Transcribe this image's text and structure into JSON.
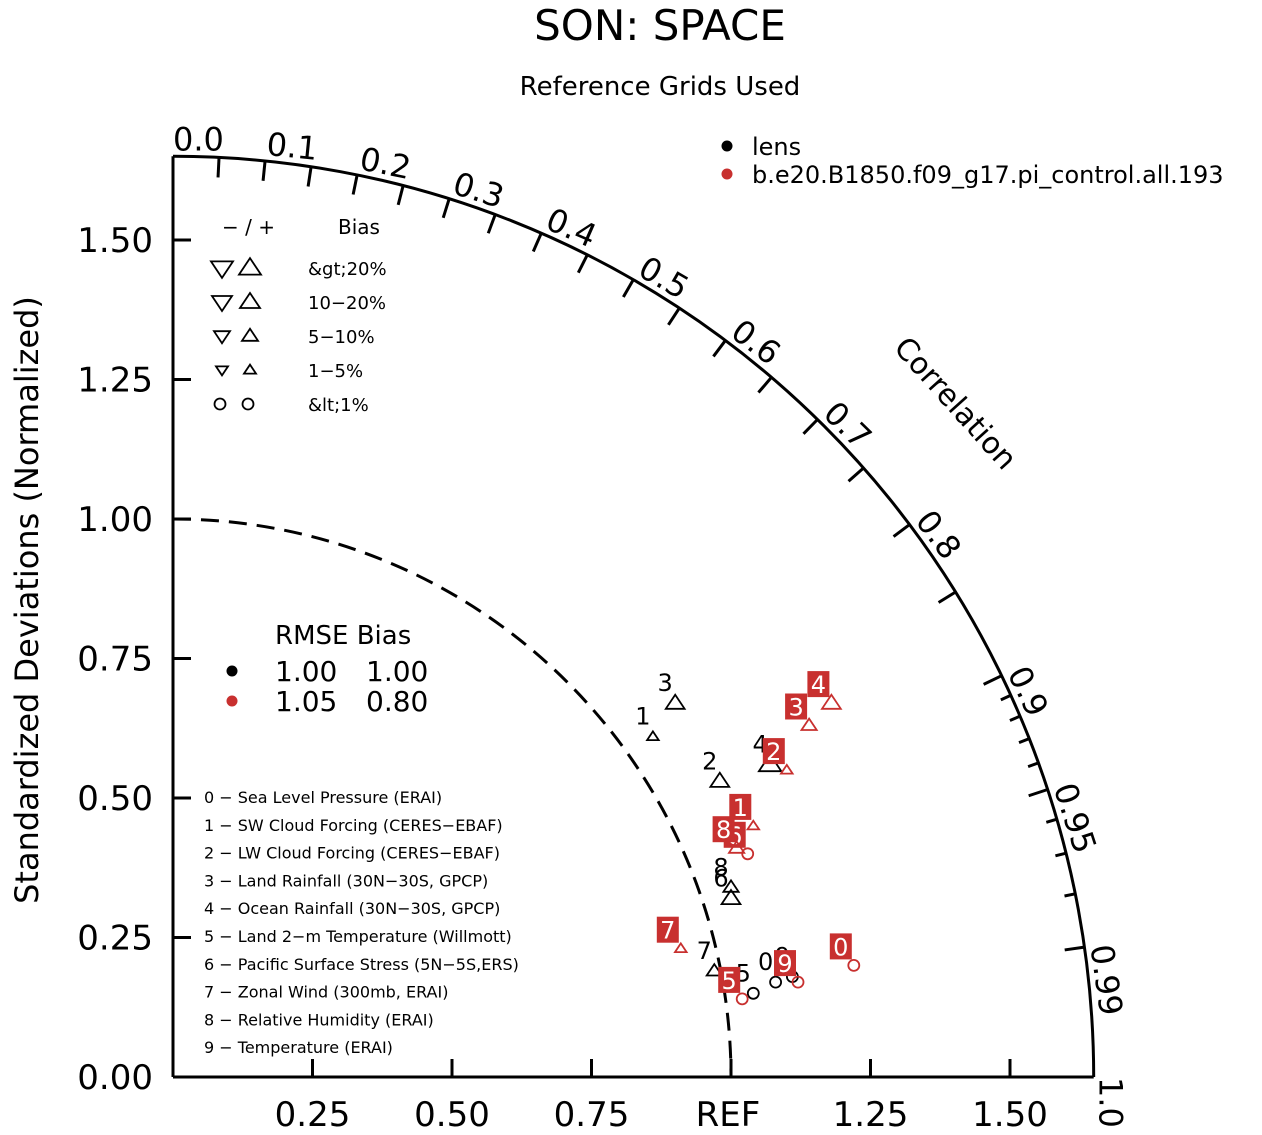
{
  "chart_data": {
    "type": "taylor_diagram",
    "title": "SON: SPACE",
    "subtitle": "Reference Grids Used",
    "ylabel": "Standardized Deviations (Normalized)",
    "correlation_label": "Correlation",
    "ref_label": "REF",
    "sd_ticks": [
      "0.00",
      "0.25",
      "0.50",
      "0.75",
      "1.00",
      "1.25",
      "1.50"
    ],
    "x_ticks": [
      "0.25",
      "0.50",
      "0.75",
      "1.25",
      "1.50"
    ],
    "max_sd": 1.65,
    "ref_circle_sd": 1.0,
    "corr_labels": [
      "0.0",
      "0.1",
      "0.2",
      "0.3",
      "0.4",
      "0.5",
      "0.6",
      "0.7",
      "0.8",
      "0.9",
      "0.95",
      "0.99",
      "1.0"
    ],
    "corr_label_values": [
      0.0,
      0.1,
      0.2,
      0.3,
      0.4,
      0.5,
      0.6,
      0.7,
      0.8,
      0.9,
      0.95,
      0.99,
      1.0
    ],
    "corr_ticks_major": [
      0.05,
      0.1,
      0.15,
      0.2,
      0.25,
      0.3,
      0.35,
      0.4,
      0.45,
      0.5,
      0.55,
      0.6,
      0.65,
      0.7,
      0.75,
      0.8,
      0.85,
      0.9,
      0.95,
      0.99
    ],
    "corr_ticks_minor": [
      0.91,
      0.92,
      0.93,
      0.94,
      0.96,
      0.97,
      0.98
    ],
    "cases": [
      {
        "name": "lens",
        "color": "#000000"
      },
      {
        "name": "b.e20.B1850.f09_g17.pi_control.all.193",
        "color": "#c8302f"
      }
    ],
    "legend_bias": {
      "header_sign": "− / +",
      "header_label": "Bias",
      "rows": [
        "&gt;20%",
        "10−20%",
        "5−10%",
        "1−5%",
        "&lt;1%"
      ]
    },
    "legend_summary": {
      "header": "RMSE Bias",
      "rows": [
        {
          "case": "lens",
          "rmse": "1.00",
          "bias": "1.00"
        },
        {
          "case": "b.e20.B1850.f09_g17.pi_control.all.193",
          "rmse": "1.05",
          "bias": "0.80"
        }
      ]
    },
    "variables": [
      "0 − Sea Level Pressure (ERAI)",
      "1 − SW Cloud Forcing (CERES−EBAF)",
      "2 − LW Cloud Forcing (CERES−EBAF)",
      "3 − Land Rainfall (30N−30S, GPCP)",
      "4 − Ocean Rainfall (30N−30S, GPCP)",
      "5 − Land 2−m Temperature (Willmott)",
      "6 − Pacific Surface Stress (5N−5S,ERS)",
      "7 − Zonal Wind (300mb, ERAI)",
      "8 − Relative Humidity (ERAI)",
      "9 − Temperature (ERAI)"
    ],
    "points": [
      {
        "case": "lens",
        "label": "0",
        "x": 1.08,
        "y": 0.17,
        "marker": "circle",
        "size": 1
      },
      {
        "case": "lens",
        "label": "1",
        "x": 0.86,
        "y": 0.61,
        "marker": "up",
        "size": 1
      },
      {
        "case": "lens",
        "label": "2",
        "x": 0.98,
        "y": 0.53,
        "marker": "up",
        "size": 3
      },
      {
        "case": "lens",
        "label": "3",
        "x": 0.9,
        "y": 0.67,
        "marker": "up",
        "size": 3
      },
      {
        "case": "lens",
        "label": "4",
        "x": 1.07,
        "y": 0.56,
        "marker": "up",
        "size": 4
      },
      {
        "case": "lens",
        "label": "5",
        "x": 1.04,
        "y": 0.15,
        "marker": "circle",
        "size": 1
      },
      {
        "case": "lens",
        "label": "6",
        "x": 1.0,
        "y": 0.32,
        "marker": "up",
        "size": 3
      },
      {
        "case": "lens",
        "label": "7",
        "x": 0.97,
        "y": 0.19,
        "marker": "up",
        "size": 2
      },
      {
        "case": "lens",
        "label": "8",
        "x": 1.0,
        "y": 0.34,
        "marker": "up",
        "size": 2
      },
      {
        "case": "lens",
        "label": "9",
        "x": 1.11,
        "y": 0.18,
        "marker": "circle",
        "size": 1
      },
      {
        "case": "b.e20.B1850.f09_g17.pi_control.all.193",
        "label": "0",
        "x": 1.22,
        "y": 0.2,
        "marker": "circle",
        "size": 1
      },
      {
        "case": "b.e20.B1850.f09_g17.pi_control.all.193",
        "label": "1",
        "x": 1.04,
        "y": 0.45,
        "marker": "up",
        "size": 1
      },
      {
        "case": "b.e20.B1850.f09_g17.pi_control.all.193",
        "label": "2",
        "x": 1.1,
        "y": 0.55,
        "marker": "up",
        "size": 1
      },
      {
        "case": "b.e20.B1850.f09_g17.pi_control.all.193",
        "label": "3",
        "x": 1.14,
        "y": 0.63,
        "marker": "up",
        "size": 2
      },
      {
        "case": "b.e20.B1850.f09_g17.pi_control.all.193",
        "label": "4",
        "x": 1.18,
        "y": 0.67,
        "marker": "up",
        "size": 3
      },
      {
        "case": "b.e20.B1850.f09_g17.pi_control.all.193",
        "label": "5",
        "x": 1.02,
        "y": 0.14,
        "marker": "circle",
        "size": 1
      },
      {
        "case": "b.e20.B1850.f09_g17.pi_control.all.193",
        "label": "6",
        "x": 1.03,
        "y": 0.4,
        "marker": "circle",
        "size": 1
      },
      {
        "case": "b.e20.B1850.f09_g17.pi_control.all.193",
        "label": "7",
        "x": 0.91,
        "y": 0.23,
        "marker": "up",
        "size": 1
      },
      {
        "case": "b.e20.B1850.f09_g17.pi_control.all.193",
        "label": "8",
        "x": 1.01,
        "y": 0.41,
        "marker": "up",
        "size": 2
      },
      {
        "case": "b.e20.B1850.f09_g17.pi_control.all.193",
        "label": "9",
        "x": 1.12,
        "y": 0.17,
        "marker": "circle",
        "size": 1
      }
    ]
  }
}
